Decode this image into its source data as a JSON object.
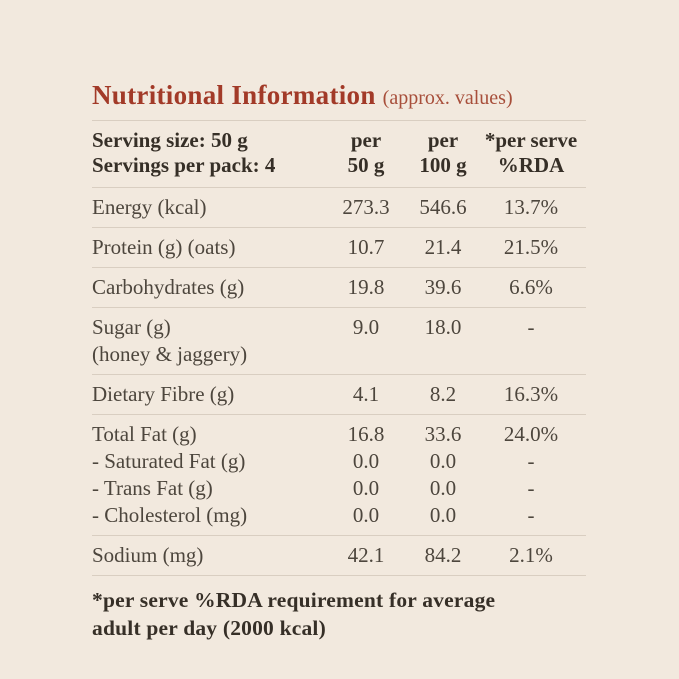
{
  "title": {
    "main": "Nutritional Information",
    "suffix": "(approx. values)"
  },
  "header": {
    "serving_size": "Serving size: 50 g",
    "servings_per_pack": "Servings per pack: 4",
    "columns": [
      {
        "line1": "per",
        "line2": "50 g"
      },
      {
        "line1": "per",
        "line2": "100 g"
      },
      {
        "line1": "*per serve",
        "line2": "%RDA"
      }
    ]
  },
  "table": {
    "rows": [
      {
        "cells": [
          [
            "Energy (kcal)"
          ],
          [
            "273.3"
          ],
          [
            "546.6"
          ],
          [
            "13.7%"
          ]
        ]
      },
      {
        "cells": [
          [
            "Protein (g) (oats)"
          ],
          [
            "10.7"
          ],
          [
            "21.4"
          ],
          [
            "21.5%"
          ]
        ]
      },
      {
        "cells": [
          [
            "Carbohydrates (g)"
          ],
          [
            "19.8"
          ],
          [
            "39.6"
          ],
          [
            "6.6%"
          ]
        ]
      },
      {
        "cells": [
          [
            "Sugar (g)",
            "(honey & jaggery)"
          ],
          [
            "9.0"
          ],
          [
            "18.0"
          ],
          [
            "-"
          ]
        ]
      },
      {
        "cells": [
          [
            "Dietary Fibre (g)"
          ],
          [
            "4.1"
          ],
          [
            "8.2"
          ],
          [
            "16.3%"
          ]
        ]
      },
      {
        "cells": [
          [
            "Total Fat (g)",
            "- Saturated Fat (g)",
            "- Trans Fat (g)",
            "- Cholesterol (mg)"
          ],
          [
            "16.8",
            "0.0",
            "0.0",
            "0.0"
          ],
          [
            "33.6",
            "0.0",
            "0.0",
            "0.0"
          ],
          [
            "24.0%",
            "-",
            "-",
            "-"
          ]
        ]
      },
      {
        "cells": [
          [
            "Sodium (mg)"
          ],
          [
            "42.1"
          ],
          [
            "84.2"
          ],
          [
            "2.1%"
          ]
        ]
      }
    ]
  },
  "footnote": {
    "lines": [
      "*per serve %RDA requirement for average",
      "adult per day (2000 kcal)"
    ]
  },
  "colors": {
    "background": "#f2e9de",
    "title_red": "#a23a28",
    "title_suffix_red": "#a74e3a",
    "header_text": "#362f27",
    "body_text": "#4d463d",
    "rule": "#d9cec1"
  }
}
